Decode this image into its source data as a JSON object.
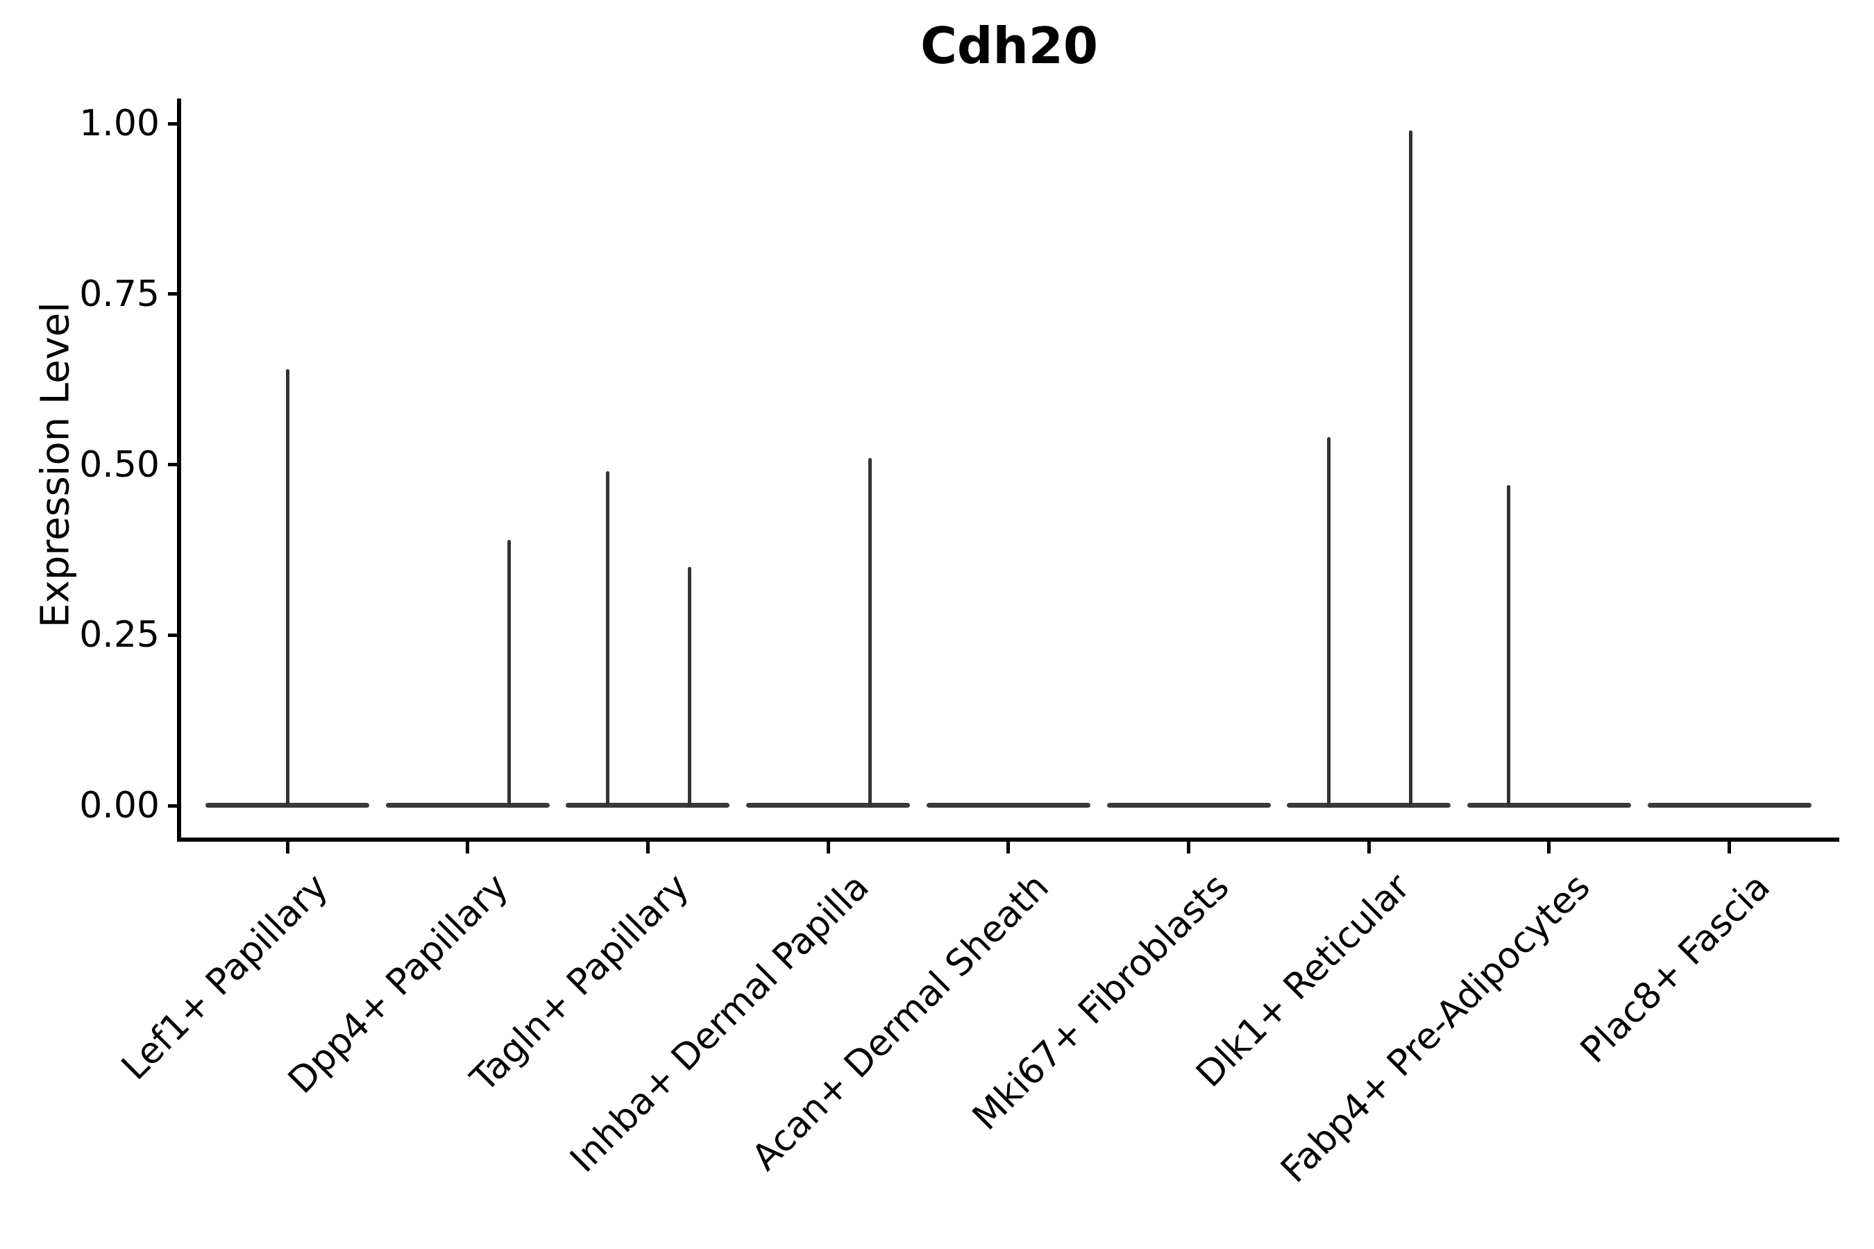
{
  "title": "Cdh20",
  "chart_data": {
    "type": "violin",
    "title": "Cdh20",
    "xlabel": "",
    "ylabel": "Expression Level",
    "ylim": [
      -0.05,
      1.04
    ],
    "grid": false,
    "legend": null,
    "violin_body_color": "#3a3a3a",
    "violin_spike_color": "#333333",
    "baseline_value": 0.0,
    "yticks": [
      {
        "value": 1.0,
        "label": "1.00"
      },
      {
        "value": 0.75,
        "label": "0.75"
      },
      {
        "value": 0.5,
        "label": "0.50"
      },
      {
        "value": 0.25,
        "label": "0.25"
      },
      {
        "value": 0.0,
        "label": "0.00"
      }
    ],
    "categories": [
      {
        "label": "Lef1+ Papillary",
        "spikes": [
          {
            "position": "center",
            "value": 0.64
          }
        ]
      },
      {
        "label": "Dpp4+ Papillary",
        "spikes": [
          {
            "position": "right",
            "value": 0.39
          }
        ]
      },
      {
        "label": "Tagln+ Papillary",
        "spikes": [
          {
            "position": "left",
            "value": 0.49
          },
          {
            "position": "right",
            "value": 0.35
          }
        ]
      },
      {
        "label": "Inhba+ Dermal Papilla",
        "spikes": [
          {
            "position": "right",
            "value": 0.51
          }
        ]
      },
      {
        "label": "Acan+ Dermal Sheath",
        "spikes": []
      },
      {
        "label": "Mki67+ Fibroblasts",
        "spikes": []
      },
      {
        "label": "Dlk1+ Reticular",
        "spikes": [
          {
            "position": "left",
            "value": 0.54
          },
          {
            "position": "right",
            "value": 0.99
          }
        ]
      },
      {
        "label": "Fabp4+ Pre-Adipocytes",
        "spikes": [
          {
            "position": "left",
            "value": 0.47
          }
        ]
      },
      {
        "label": "Plac8+ Fascia",
        "spikes": []
      }
    ]
  }
}
